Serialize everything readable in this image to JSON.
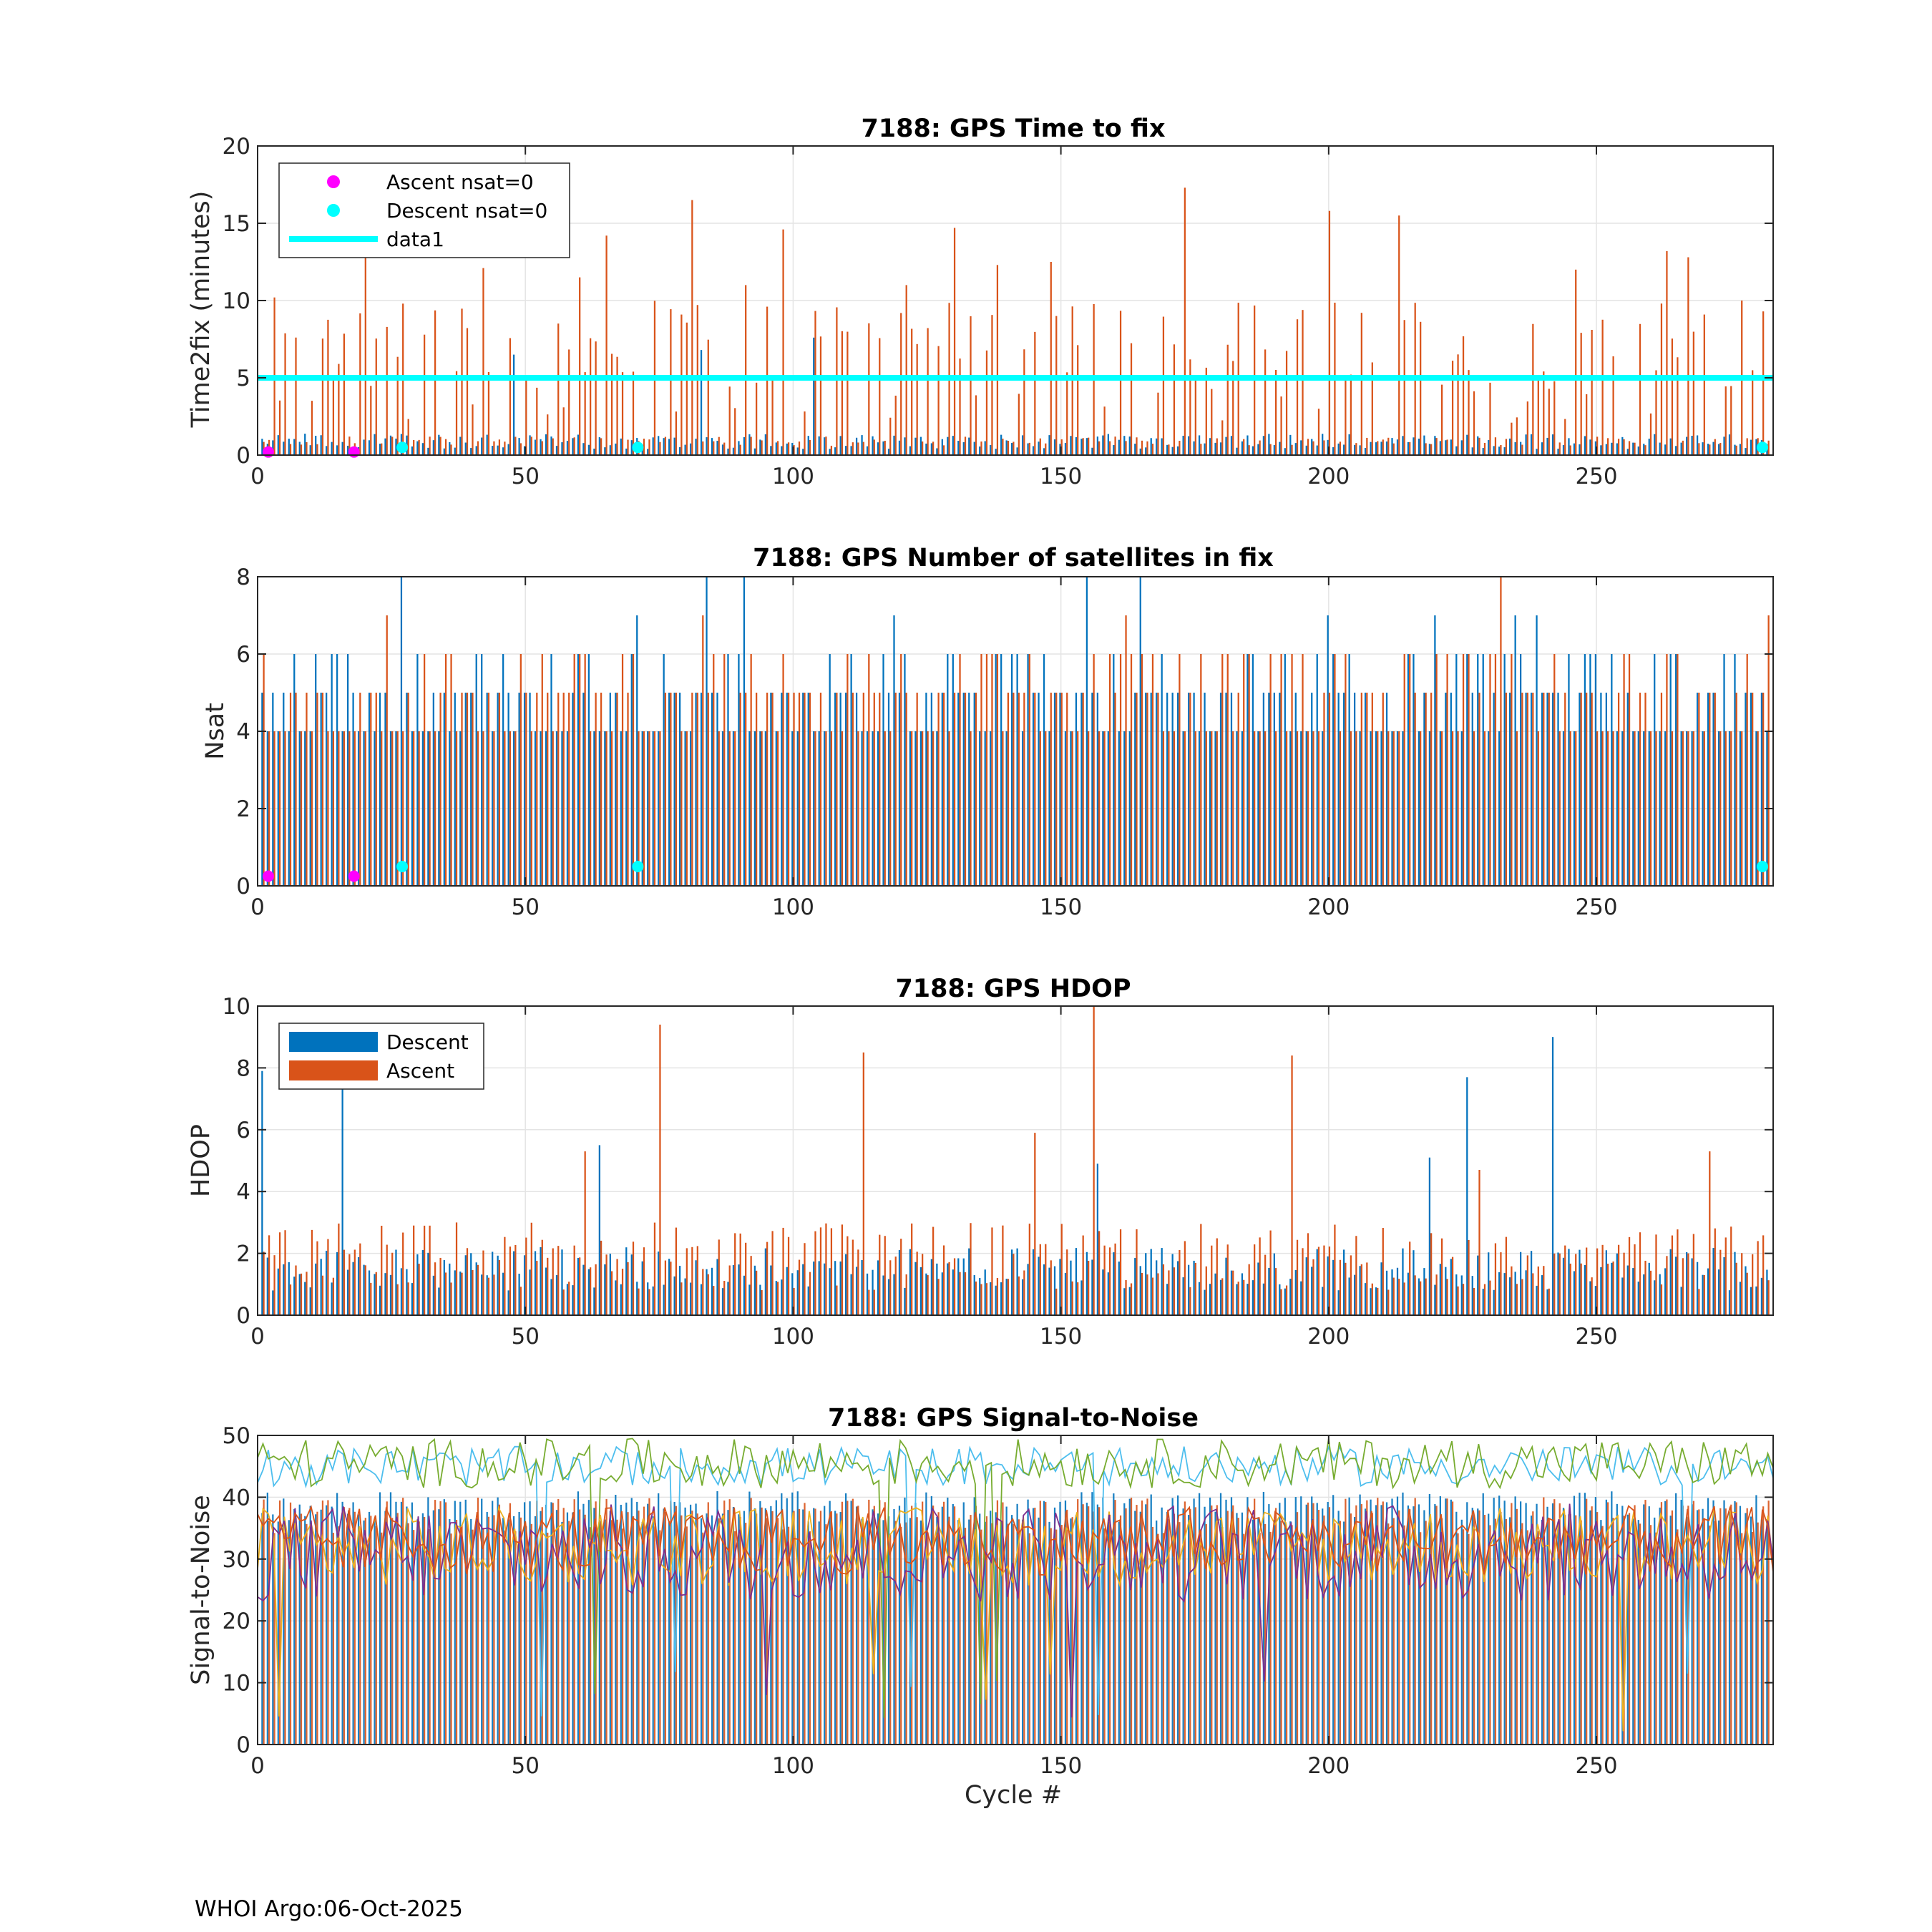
{
  "footer": "WHOI Argo:06-Oct-2025",
  "colors": {
    "descent": "#0072BD",
    "ascent": "#D95319",
    "ascent_nsat0": "#FF00FF",
    "descent_nsat0": "#00FFFF",
    "snr_series": [
      "#0072BD",
      "#D95319",
      "#EDB120",
      "#7E2F8E",
      "#77AC30",
      "#4DBEEE"
    ]
  },
  "chart_data": [
    {
      "type": "bar",
      "title": "7188: GPS Time to fix",
      "xlabel": "",
      "ylabel": "Time2fix (minutes)",
      "xlim": [
        0,
        283
      ],
      "ylim": [
        0,
        20
      ],
      "xticks": [
        0,
        50,
        100,
        150,
        200,
        250
      ],
      "yticks": [
        0,
        5,
        10,
        15,
        20
      ],
      "grid": true,
      "legend": {
        "placement": "top-left",
        "entries": [
          "Ascent nsat=0",
          "Descent nsat=0",
          "data1"
        ]
      },
      "series": [
        {
          "name": "data1",
          "kind": "line",
          "x": [
            0,
            283
          ],
          "values": [
            5,
            5
          ]
        }
      ],
      "ascent_peaks": [
        {
          "x": 3,
          "y": 10.2
        },
        {
          "x": 20,
          "y": 13.0
        },
        {
          "x": 27,
          "y": 9.8
        },
        {
          "x": 42,
          "y": 12.1
        },
        {
          "x": 60,
          "y": 11.5
        },
        {
          "x": 65,
          "y": 14.2
        },
        {
          "x": 81,
          "y": 16.5
        },
        {
          "x": 91,
          "y": 11.0
        },
        {
          "x": 98,
          "y": 14.6
        },
        {
          "x": 121,
          "y": 11.0
        },
        {
          "x": 130,
          "y": 14.7
        },
        {
          "x": 138,
          "y": 12.3
        },
        {
          "x": 148,
          "y": 12.5
        },
        {
          "x": 173,
          "y": 17.3
        },
        {
          "x": 200,
          "y": 15.8
        },
        {
          "x": 213,
          "y": 15.5
        },
        {
          "x": 246,
          "y": 12.0
        },
        {
          "x": 263,
          "y": 13.2
        },
        {
          "x": 267,
          "y": 12.8
        },
        {
          "x": 277,
          "y": 10.0
        }
      ],
      "descent_peaks": [
        {
          "x": 48,
          "y": 6.5
        },
        {
          "x": 104,
          "y": 7.6
        },
        {
          "x": 83,
          "y": 6.8
        }
      ],
      "ascent_nsat0_points": [
        {
          "x": 2,
          "y": 0.2
        },
        {
          "x": 18,
          "y": 0.2
        }
      ],
      "descent_nsat0_points": [
        {
          "x": 27,
          "y": 0.5
        },
        {
          "x": 71,
          "y": 0.5
        },
        {
          "x": 281,
          "y": 0.5
        }
      ]
    },
    {
      "type": "bar",
      "title": "7188: GPS Number of satellites in fix",
      "xlabel": "",
      "ylabel": "Nsat",
      "xlim": [
        0,
        283
      ],
      "ylim": [
        0,
        8
      ],
      "xticks": [
        0,
        50,
        100,
        150,
        200,
        250
      ],
      "yticks": [
        0,
        2,
        4,
        6,
        8
      ],
      "grid": true,
      "descent_peaks": [
        {
          "x": 27,
          "y": 8
        },
        {
          "x": 84,
          "y": 8
        },
        {
          "x": 91,
          "y": 8
        },
        {
          "x": 155,
          "y": 8
        },
        {
          "x": 165,
          "y": 8
        },
        {
          "x": 71,
          "y": 7
        },
        {
          "x": 119,
          "y": 7
        },
        {
          "x": 200,
          "y": 7
        },
        {
          "x": 220,
          "y": 7
        },
        {
          "x": 235,
          "y": 7
        },
        {
          "x": 239,
          "y": 7
        }
      ],
      "ascent_peaks": [
        {
          "x": 24,
          "y": 7
        },
        {
          "x": 83,
          "y": 7
        },
        {
          "x": 162,
          "y": 7
        },
        {
          "x": 232,
          "y": 8
        },
        {
          "x": 282,
          "y": 7
        }
      ],
      "ascent_nsat0_points": [
        {
          "x": 2,
          "y": 0.25
        },
        {
          "x": 18,
          "y": 0.25
        }
      ],
      "descent_nsat0_points": [
        {
          "x": 27,
          "y": 0.5
        },
        {
          "x": 71,
          "y": 0.5
        },
        {
          "x": 281,
          "y": 0.5
        }
      ]
    },
    {
      "type": "bar",
      "title": "7188: GPS HDOP",
      "xlabel": "",
      "ylabel": "HDOP",
      "xlim": [
        0,
        283
      ],
      "ylim": [
        0,
        10
      ],
      "xticks": [
        0,
        50,
        100,
        150,
        200,
        250
      ],
      "yticks": [
        0,
        2,
        4,
        6,
        8,
        10
      ],
      "grid": true,
      "legend": {
        "placement": "top-left",
        "entries": [
          "Descent",
          "Ascent"
        ]
      },
      "descent_peaks": [
        {
          "x": 1,
          "y": 7.9
        },
        {
          "x": 16,
          "y": 7.5
        },
        {
          "x": 64,
          "y": 5.5
        },
        {
          "x": 157,
          "y": 4.9
        },
        {
          "x": 226,
          "y": 7.7
        },
        {
          "x": 242,
          "y": 9.0
        },
        {
          "x": 219,
          "y": 5.1
        }
      ],
      "ascent_peaks": [
        {
          "x": 61,
          "y": 5.3
        },
        {
          "x": 75,
          "y": 9.4
        },
        {
          "x": 113,
          "y": 8.5
        },
        {
          "x": 145,
          "y": 5.9
        },
        {
          "x": 156,
          "y": 10.0
        },
        {
          "x": 193,
          "y": 8.4
        },
        {
          "x": 271,
          "y": 5.3
        },
        {
          "x": 228,
          "y": 4.7
        }
      ]
    },
    {
      "type": "line",
      "title": "7188: GPS Signal-to-Noise",
      "xlabel": "Cycle #",
      "ylabel": "Signal-to-Noise",
      "xlim": [
        0,
        283
      ],
      "ylim": [
        0,
        50
      ],
      "xticks": [
        0,
        50,
        100,
        150,
        200,
        250
      ],
      "yticks": [
        0,
        10,
        20,
        30,
        40,
        50
      ],
      "grid": true,
      "series_levels": [
        {
          "color_index": 5,
          "mean": 45.0,
          "spread": 2.0
        },
        {
          "color_index": 4,
          "mean": 45.5,
          "spread": 2.5
        },
        {
          "color_index": 2,
          "mean": 32.0,
          "spread": 4.0
        },
        {
          "color_index": 3,
          "mean": 31.0,
          "spread": 5.0
        },
        {
          "color_index": 1,
          "mean": 33.0,
          "spread": 3.5
        }
      ]
    }
  ]
}
